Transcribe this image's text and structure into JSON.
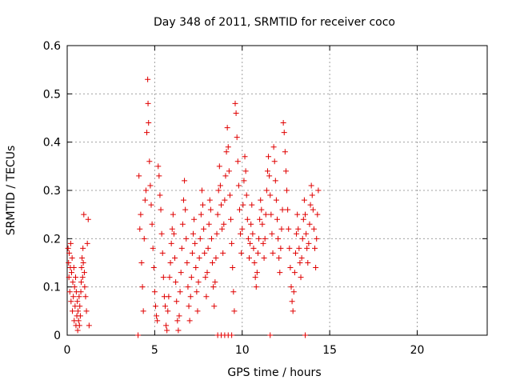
{
  "chart_data": {
    "type": "scatter",
    "title": "Day 348 of 2011, SRMTID for receiver coco",
    "xlabel": "GPS time / hours",
    "ylabel": "SRMTID / TECUs",
    "xlim": [
      0,
      24
    ],
    "ylim": [
      0,
      0.6
    ],
    "xticks": [
      0,
      5,
      10,
      15,
      20
    ],
    "yticks": [
      0,
      0.1,
      0.2,
      0.3,
      0.4,
      0.5,
      0.6
    ],
    "grid": true,
    "marker": "plus",
    "color": "#e00000",
    "series": [
      {
        "points": [
          [
            0.05,
            0.18
          ],
          [
            0.08,
            0.15
          ],
          [
            0.1,
            0.12
          ],
          [
            0.12,
            0.17
          ],
          [
            0.15,
            0.09
          ],
          [
            0.18,
            0.14
          ],
          [
            0.2,
            0.19
          ],
          [
            0.22,
            0.07
          ],
          [
            0.25,
            0.13
          ],
          [
            0.28,
            0.16
          ],
          [
            0.3,
            0.05
          ],
          [
            0.32,
            0.11
          ],
          [
            0.35,
            0.08
          ],
          [
            0.38,
            0.14
          ],
          [
            0.4,
            0.03
          ],
          [
            0.42,
            0.1
          ],
          [
            0.45,
            0.06
          ],
          [
            0.48,
            0.12
          ],
          [
            0.5,
            0.02
          ],
          [
            0.52,
            0.09
          ],
          [
            0.55,
            0.04
          ],
          [
            0.58,
            0.07
          ],
          [
            0.6,
            0.01
          ],
          [
            0.62,
            0.05
          ],
          [
            0.65,
            0.03
          ],
          [
            0.68,
            0.08
          ],
          [
            0.7,
            0.02
          ],
          [
            0.72,
            0.06
          ],
          [
            0.75,
            0.04
          ],
          [
            0.78,
            0.09
          ],
          [
            0.8,
            0.11
          ],
          [
            0.82,
            0.14
          ],
          [
            0.85,
            0.16
          ],
          [
            0.88,
            0.12
          ],
          [
            0.9,
            0.18
          ],
          [
            0.92,
            0.15
          ],
          [
            0.95,
            0.25
          ],
          [
            0.98,
            0.13
          ],
          [
            1.0,
            0.1
          ],
          [
            1.05,
            0.08
          ],
          [
            1.1,
            0.05
          ],
          [
            1.15,
            0.19
          ],
          [
            1.2,
            0.24
          ],
          [
            1.25,
            0.02
          ],
          [
            4.05,
            0.0
          ],
          [
            4.1,
            0.33
          ],
          [
            4.15,
            0.22
          ],
          [
            4.2,
            0.25
          ],
          [
            4.25,
            0.15
          ],
          [
            4.3,
            0.1
          ],
          [
            4.35,
            0.05
          ],
          [
            4.4,
            0.2
          ],
          [
            4.45,
            0.28
          ],
          [
            4.5,
            0.3
          ],
          [
            4.55,
            0.42
          ],
          [
            4.6,
            0.53
          ],
          [
            4.62,
            0.48
          ],
          [
            4.65,
            0.44
          ],
          [
            4.7,
            0.36
          ],
          [
            4.75,
            0.31
          ],
          [
            4.8,
            0.27
          ],
          [
            4.85,
            0.23
          ],
          [
            4.9,
            0.18
          ],
          [
            4.95,
            0.14
          ],
          [
            5.0,
            0.09
          ],
          [
            5.05,
            0.06
          ],
          [
            5.1,
            0.04
          ],
          [
            5.15,
            0.03
          ],
          [
            5.2,
            0.35
          ],
          [
            5.25,
            0.33
          ],
          [
            5.3,
            0.29
          ],
          [
            5.35,
            0.26
          ],
          [
            5.4,
            0.21
          ],
          [
            5.45,
            0.17
          ],
          [
            5.5,
            0.12
          ],
          [
            5.55,
            0.08
          ],
          [
            5.6,
            0.06
          ],
          [
            5.65,
            0.02
          ],
          [
            5.7,
            0.01
          ],
          [
            5.75,
            0.05
          ],
          [
            5.8,
            0.08
          ],
          [
            5.85,
            0.12
          ],
          [
            5.9,
            0.15
          ],
          [
            5.95,
            0.19
          ],
          [
            6.0,
            0.22
          ],
          [
            6.05,
            0.25
          ],
          [
            6.1,
            0.21
          ],
          [
            6.15,
            0.16
          ],
          [
            6.2,
            0.11
          ],
          [
            6.25,
            0.07
          ],
          [
            6.3,
            0.03
          ],
          [
            6.35,
            0.01
          ],
          [
            6.4,
            0.04
          ],
          [
            6.45,
            0.09
          ],
          [
            6.5,
            0.13
          ],
          [
            6.55,
            0.18
          ],
          [
            6.6,
            0.23
          ],
          [
            6.65,
            0.28
          ],
          [
            6.7,
            0.32
          ],
          [
            6.75,
            0.26
          ],
          [
            6.8,
            0.2
          ],
          [
            6.85,
            0.15
          ],
          [
            6.9,
            0.1
          ],
          [
            6.95,
            0.06
          ],
          [
            7.0,
            0.03
          ],
          [
            7.05,
            0.08
          ],
          [
            7.1,
            0.12
          ],
          [
            7.15,
            0.17
          ],
          [
            7.2,
            0.21
          ],
          [
            7.25,
            0.24
          ],
          [
            7.3,
            0.19
          ],
          [
            7.35,
            0.14
          ],
          [
            7.4,
            0.09
          ],
          [
            7.45,
            0.05
          ],
          [
            7.5,
            0.11
          ],
          [
            7.55,
            0.16
          ],
          [
            7.6,
            0.2
          ],
          [
            7.65,
            0.25
          ],
          [
            7.7,
            0.3
          ],
          [
            7.75,
            0.27
          ],
          [
            7.8,
            0.22
          ],
          [
            7.85,
            0.17
          ],
          [
            7.9,
            0.12
          ],
          [
            7.95,
            0.08
          ],
          [
            8.0,
            0.13
          ],
          [
            8.05,
            0.18
          ],
          [
            8.1,
            0.23
          ],
          [
            8.15,
            0.28
          ],
          [
            8.2,
            0.26
          ],
          [
            8.25,
            0.2
          ],
          [
            8.3,
            0.15
          ],
          [
            8.35,
            0.1
          ],
          [
            8.4,
            0.06
          ],
          [
            8.45,
            0.11
          ],
          [
            8.5,
            0.16
          ],
          [
            8.55,
            0.21
          ],
          [
            8.6,
            0.25
          ],
          [
            8.65,
            0.3
          ],
          [
            8.7,
            0.35
          ],
          [
            8.75,
            0.31
          ],
          [
            8.8,
            0.27
          ],
          [
            8.85,
            0.22
          ],
          [
            8.9,
            0.17
          ],
          [
            8.95,
            0.23
          ],
          [
            9.0,
            0.28
          ],
          [
            9.05,
            0.33
          ],
          [
            9.1,
            0.38
          ],
          [
            9.15,
            0.43
          ],
          [
            9.2,
            0.39
          ],
          [
            9.25,
            0.34
          ],
          [
            9.3,
            0.29
          ],
          [
            9.35,
            0.24
          ],
          [
            9.4,
            0.19
          ],
          [
            9.45,
            0.14
          ],
          [
            9.5,
            0.09
          ],
          [
            9.55,
            0.05
          ],
          [
            9.6,
            0.48
          ],
          [
            9.65,
            0.46
          ],
          [
            9.7,
            0.41
          ],
          [
            9.75,
            0.36
          ],
          [
            9.8,
            0.31
          ],
          [
            9.85,
            0.26
          ],
          [
            9.9,
            0.21
          ],
          [
            9.95,
            0.17
          ],
          [
            10.0,
            0.22
          ],
          [
            10.05,
            0.27
          ],
          [
            10.1,
            0.32
          ],
          [
            10.15,
            0.37
          ],
          [
            10.2,
            0.34
          ],
          [
            10.25,
            0.29
          ],
          [
            10.3,
            0.24
          ],
          [
            10.35,
            0.2
          ],
          [
            10.4,
            0.16
          ],
          [
            10.45,
            0.19
          ],
          [
            10.5,
            0.23
          ],
          [
            10.55,
            0.27
          ],
          [
            10.6,
            0.21
          ],
          [
            10.65,
            0.18
          ],
          [
            10.7,
            0.15
          ],
          [
            10.75,
            0.12
          ],
          [
            10.8,
            0.1
          ],
          [
            10.85,
            0.13
          ],
          [
            10.9,
            0.17
          ],
          [
            10.95,
            0.2
          ],
          [
            11.0,
            0.24
          ],
          [
            11.05,
            0.28
          ],
          [
            11.1,
            0.26
          ],
          [
            11.15,
            0.23
          ],
          [
            11.2,
            0.19
          ],
          [
            11.25,
            0.16
          ],
          [
            11.3,
            0.2
          ],
          [
            11.35,
            0.25
          ],
          [
            11.4,
            0.3
          ],
          [
            11.45,
            0.34
          ],
          [
            11.5,
            0.37
          ],
          [
            11.55,
            0.33
          ],
          [
            11.6,
            0.29
          ],
          [
            11.65,
            0.25
          ],
          [
            11.7,
            0.21
          ],
          [
            11.75,
            0.17
          ],
          [
            11.8,
            0.39
          ],
          [
            11.85,
            0.36
          ],
          [
            11.9,
            0.32
          ],
          [
            11.95,
            0.28
          ],
          [
            12.0,
            0.24
          ],
          [
            12.05,
            0.2
          ],
          [
            12.1,
            0.16
          ],
          [
            12.15,
            0.13
          ],
          [
            12.2,
            0.18
          ],
          [
            12.25,
            0.22
          ],
          [
            12.3,
            0.26
          ],
          [
            12.35,
            0.44
          ],
          [
            12.4,
            0.42
          ],
          [
            12.45,
            0.38
          ],
          [
            12.5,
            0.34
          ],
          [
            12.55,
            0.3
          ],
          [
            12.6,
            0.26
          ],
          [
            12.65,
            0.22
          ],
          [
            12.7,
            0.18
          ],
          [
            12.75,
            0.14
          ],
          [
            12.8,
            0.1
          ],
          [
            12.85,
            0.07
          ],
          [
            12.9,
            0.05
          ],
          [
            12.95,
            0.09
          ],
          [
            13.0,
            0.13
          ],
          [
            13.05,
            0.17
          ],
          [
            13.1,
            0.21
          ],
          [
            13.15,
            0.25
          ],
          [
            13.2,
            0.22
          ],
          [
            13.25,
            0.18
          ],
          [
            13.3,
            0.15
          ],
          [
            13.35,
            0.12
          ],
          [
            13.4,
            0.16
          ],
          [
            13.45,
            0.2
          ],
          [
            13.5,
            0.24
          ],
          [
            13.55,
            0.28
          ],
          [
            13.6,
            0.25
          ],
          [
            13.65,
            0.21
          ],
          [
            13.7,
            0.18
          ],
          [
            13.75,
            0.15
          ],
          [
            13.8,
            0.19
          ],
          [
            13.85,
            0.23
          ],
          [
            13.9,
            0.27
          ],
          [
            13.95,
            0.31
          ],
          [
            14.0,
            0.29
          ],
          [
            14.05,
            0.26
          ],
          [
            14.1,
            0.22
          ],
          [
            14.15,
            0.18
          ],
          [
            14.2,
            0.14
          ],
          [
            14.25,
            0.2
          ],
          [
            14.3,
            0.25
          ],
          [
            14.35,
            0.3
          ],
          [
            8.6,
            0.0
          ],
          [
            8.8,
            0.0
          ],
          [
            9.0,
            0.0
          ],
          [
            9.2,
            0.0
          ],
          [
            9.4,
            0.0
          ],
          [
            11.6,
            0.0
          ],
          [
            13.6,
            0.0
          ]
        ]
      }
    ]
  }
}
